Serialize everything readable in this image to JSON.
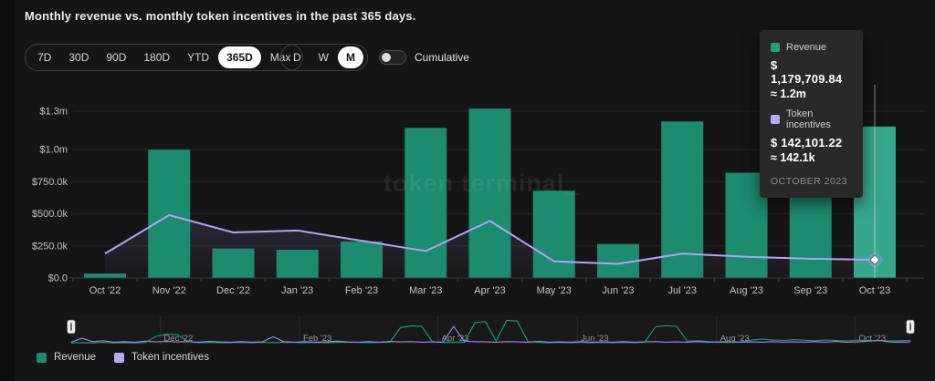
{
  "header": {
    "title": "Monthly revenue vs. monthly token incentives in the past 365 days."
  },
  "controls": {
    "ranges": [
      "7D",
      "30D",
      "90D",
      "180D",
      "YTD",
      "365D",
      "Max"
    ],
    "active_range": "365D",
    "intervals": [
      "D",
      "W",
      "M"
    ],
    "active_interval": "M",
    "cumulative_label": "Cumulative",
    "cumulative_on": false
  },
  "watermark": "token terminal_",
  "tooltip": {
    "revenue_label": "Revenue",
    "revenue_value": "$ 1,179,709.84",
    "revenue_approx": "≈ 1.2m",
    "incentives_label": "Token incentives",
    "incentives_value": "$ 142,101.22",
    "incentives_approx": "≈ 142.1k",
    "date": "OCTOBER 2023"
  },
  "legend": [
    {
      "label": "Revenue",
      "color": "#1c8b6e"
    },
    {
      "label": "Token incentives",
      "color": "#b9a8fa"
    }
  ],
  "colors": {
    "bar": "#1c8b6e",
    "bar_highlight": "#36a78b",
    "line": "#b1a3f2",
    "swatch_green": "#21a07c",
    "swatch_purple": "#b9a8fa",
    "grid": "rgba(255,255,255,0.07)",
    "axis": "#3a3a3e",
    "tick_text": "#c3c3c6",
    "nav_text": "#96969a",
    "crosshair": "rgba(235,235,238,0.55)"
  },
  "chart_data": {
    "type": "bar",
    "title": "Monthly revenue vs. monthly token incentives in the past 365 days",
    "categories": [
      "Oct '22",
      "Nov '22",
      "Dec '22",
      "Jan '23",
      "Feb '23",
      "Mar '23",
      "Apr '23",
      "May '23",
      "Jun '23",
      "Jul '23",
      "Aug '23",
      "Sep '23",
      "Oct '23"
    ],
    "series": [
      {
        "name": "Revenue",
        "type": "bar",
        "values": [
          35000,
          1000000,
          230000,
          220000,
          285000,
          1170000,
          1320000,
          680000,
          265000,
          1220000,
          820000,
          910000,
          1179709.84
        ]
      },
      {
        "name": "Token incentives",
        "type": "line",
        "values": [
          190000,
          490000,
          355000,
          370000,
          290000,
          210000,
          445000,
          130000,
          110000,
          190000,
          165000,
          150000,
          142101.22
        ]
      }
    ],
    "y_ticks": [
      {
        "value": 0,
        "label": "$0.0"
      },
      {
        "value": 250000,
        "label": "$250.0k"
      },
      {
        "value": 500000,
        "label": "$500.0k"
      },
      {
        "value": 750000,
        "label": "$750.0k"
      },
      {
        "value": 1000000,
        "label": "$1.0m"
      },
      {
        "value": 1300000,
        "label": "$1.3m"
      }
    ],
    "ylim": [
      0,
      1330000
    ],
    "grid": true,
    "legend_position": "bottom-left",
    "highlight_index": 12,
    "navigator": {
      "labels": [
        "Dec '22",
        "Feb '23",
        "Apr '23",
        "Jun '23",
        "Aug '23",
        "Oct '23"
      ],
      "revenue_spark": [
        0.03,
        0.04,
        0.03,
        0.05,
        0.03,
        0.04,
        0.03,
        0.05,
        0.3,
        0.38,
        0.36,
        0.08,
        0.04,
        0.05,
        0.04,
        0.04,
        0.05,
        0.04,
        0.05,
        0.04,
        0.06,
        0.05,
        0.04,
        0.05,
        0.04,
        0.05,
        0.06,
        0.05,
        0.04,
        0.05,
        0.06,
        0.65,
        0.72,
        0.7,
        0.08,
        0.05,
        0.06,
        0.05,
        0.85,
        0.9,
        0.1,
        0.95,
        0.92,
        0.08,
        0.05,
        0.04,
        0.05,
        0.04,
        0.05,
        0.04,
        0.05,
        0.04,
        0.05,
        0.04,
        0.06,
        0.68,
        0.73,
        0.7,
        0.1,
        0.12,
        0.08,
        0.06,
        0.05,
        0.06,
        0.14,
        0.18,
        0.15,
        0.13,
        0.16,
        0.14,
        0.12,
        0.15,
        0.13,
        0.11,
        0.14,
        0.12,
        0.13,
        0.11,
        0.12,
        0.13
      ],
      "incentives_spark": [
        0.06,
        0.22,
        0.08,
        0.12,
        0.06,
        0.08,
        0.06,
        0.1,
        0.07,
        0.09,
        0.07,
        0.08,
        0.06,
        0.09,
        0.07,
        0.06,
        0.08,
        0.06,
        0.07,
        0.28,
        0.08,
        0.06,
        0.08,
        0.06,
        0.07,
        0.1,
        0.07,
        0.06,
        0.08,
        0.06,
        0.09,
        0.07,
        0.08,
        0.06,
        0.07,
        0.06,
        0.7,
        0.1,
        0.08,
        0.07,
        0.06,
        0.08,
        0.07,
        0.06,
        0.09,
        0.06,
        0.07,
        0.06,
        0.08,
        0.06,
        0.07,
        0.06,
        0.08,
        0.06,
        0.07,
        0.08,
        0.06,
        0.07,
        0.06,
        0.08,
        0.06,
        0.07,
        0.08,
        0.06,
        0.07,
        0.06,
        0.08,
        0.06,
        0.07,
        0.06,
        0.08,
        0.06,
        0.09,
        0.06,
        0.07,
        0.1,
        0.13,
        0.07,
        0.06,
        0.07
      ]
    }
  }
}
